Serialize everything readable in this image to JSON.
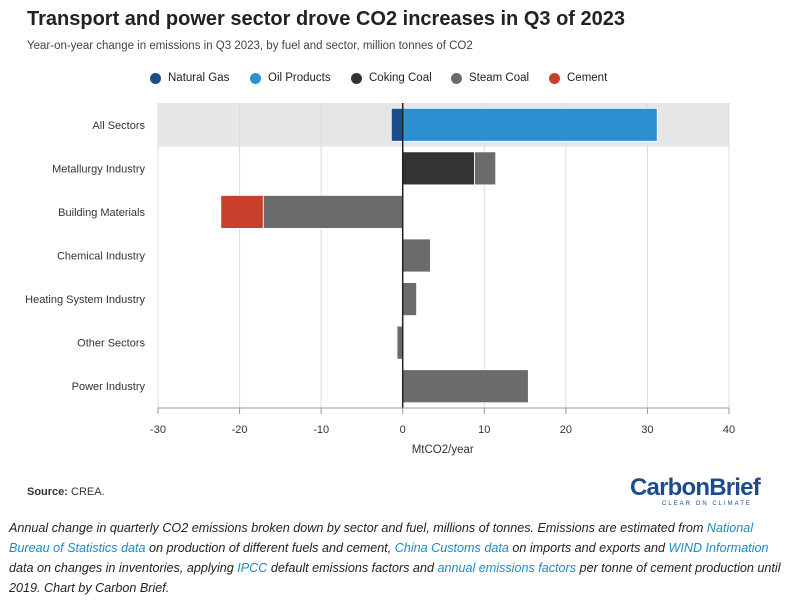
{
  "header": {
    "title": "Transport and power sector drove CO2 increases in Q3 of 2023",
    "subtitle": "Year-on-year change in emissions in Q3 2023, by fuel and sector, million tonnes of CO2"
  },
  "legend": {
    "items": [
      {
        "label": "Natural Gas",
        "color": "#1b4d8a"
      },
      {
        "label": "Oil Products",
        "color": "#2c8fd0"
      },
      {
        "label": "Coking Coal",
        "color": "#333333"
      },
      {
        "label": "Steam Coal",
        "color": "#6b6b6b"
      },
      {
        "label": "Cement",
        "color": "#c8402b"
      }
    ]
  },
  "chart_data": {
    "type": "bar",
    "orientation": "horizontal",
    "stacked": true,
    "categories": [
      "All Sectors",
      "Metallurgy Industry",
      "Building Materials",
      "Chemical Industry",
      "Heating System Industry",
      "Other Sectors",
      "Power Industry"
    ],
    "highlighted_category": "All Sectors",
    "series": [
      {
        "name": "Natural Gas",
        "color": "#1b4d8a",
        "values": [
          -1.4,
          0,
          0,
          0,
          0,
          0,
          0
        ]
      },
      {
        "name": "Oil Products",
        "color": "#2c8fd0",
        "values": [
          31.2,
          0,
          0,
          0,
          0,
          0,
          0
        ]
      },
      {
        "name": "Coking Coal",
        "color": "#333333",
        "values": [
          0,
          8.8,
          0,
          0,
          0,
          0,
          0
        ]
      },
      {
        "name": "Steam Coal",
        "color": "#6b6b6b",
        "values": [
          0,
          2.6,
          -17.1,
          3.4,
          1.7,
          -0.7,
          15.4
        ]
      },
      {
        "name": "Cement",
        "color": "#c8402b",
        "values": [
          0,
          0,
          -5.2,
          0,
          0,
          0,
          0
        ]
      }
    ],
    "xlim": [
      -30,
      40
    ],
    "xticks": [
      -30,
      -20,
      -10,
      0,
      10,
      20,
      30,
      40
    ],
    "xlabel": "MtCO2/year",
    "grid": true
  },
  "footer": {
    "source_label": "Source:",
    "source_text": "CREA.",
    "logo_text": "CarbonBrief",
    "logo_tagline": "CLEAR ON CLIMATE"
  },
  "caption": {
    "part1": "Annual change in quarterly CO2 emissions broken down by sector and fuel, millions of tonnes. Emissions are estimated from ",
    "link1": "National Bureau of Statistics data",
    "part2": " on production of different fuels and cement, ",
    "link2": "China Customs data",
    "part3": " on imports and exports and ",
    "link3": "WIND Information",
    "part4": " data on changes in inventories, applying ",
    "link4": "IPCC",
    "part5": " default emissions factors and ",
    "link5": "annual emissions factors",
    "part6": " per tonne of cement production until 2019. Chart by Carbon Brief."
  }
}
